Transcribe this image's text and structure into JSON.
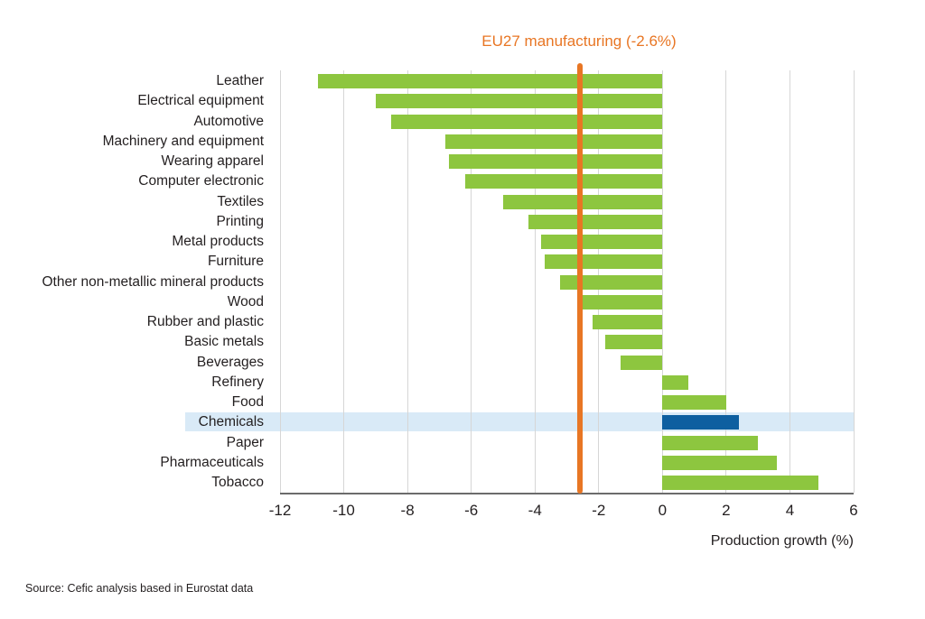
{
  "source": "Source: Cefic analysis based in Eurostat data",
  "colors": {
    "bar_green": "#8dc63f",
    "highlight_bar_blue": "#0e5fa0",
    "highlight_band_blue": "#d9eaf7",
    "reference_orange": "#e87624",
    "text_dark": "#231f20",
    "gridline_gray": "#d6d6d6",
    "axis_gray": "#6b6b6b"
  },
  "chart_data": {
    "type": "bar",
    "orientation": "horizontal",
    "title": "EU27 manufacturing (-2.6%)",
    "xlabel": "Production growth (%)",
    "xlim": [
      -12,
      6
    ],
    "xticks": [
      -12,
      -10,
      -8,
      -6,
      -4,
      -2,
      0,
      2,
      4,
      6
    ],
    "grid": true,
    "categories": [
      "Leather",
      "Electrical equipment",
      "Automotive",
      "Machinery and equipment",
      "Wearing apparel",
      "Computer electronic",
      "Textiles",
      "Printing",
      "Metal products",
      "Furniture",
      "Other non-metallic mineral products",
      "Wood",
      "Rubber and plastic",
      "Basic metals",
      "Beverages",
      "Refinery",
      "Food",
      "Chemicals",
      "Paper",
      "Pharmaceuticals",
      "Tobacco"
    ],
    "values": [
      -10.8,
      -9.0,
      -8.5,
      -6.8,
      -6.7,
      -6.2,
      -5.0,
      -4.2,
      -3.8,
      -3.7,
      -3.2,
      -2.5,
      -2.2,
      -1.8,
      -1.3,
      0.8,
      2.0,
      2.4,
      3.0,
      3.6,
      4.9
    ],
    "highlight_category": "Chemicals",
    "reference_line": {
      "value": -2.6,
      "label": "EU27 manufacturing (-2.6%)"
    },
    "legend": null
  }
}
